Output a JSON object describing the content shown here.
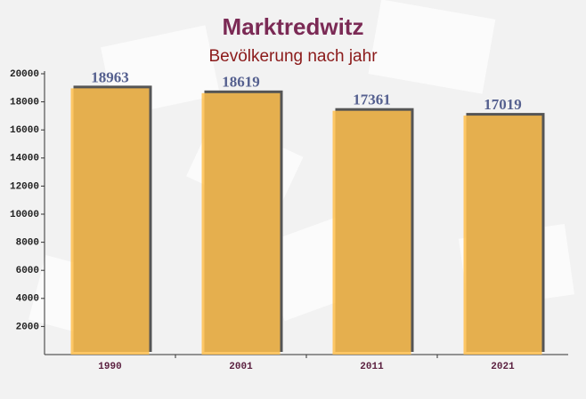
{
  "chart_data": {
    "type": "bar",
    "title": "Marktredwitz",
    "subtitle": "Bevölkerung nach jahr",
    "categories": [
      "1990",
      "2001",
      "2011",
      "2021"
    ],
    "values": [
      18963,
      18619,
      17361,
      17019
    ],
    "color": "#ffc04d",
    "ylim": [
      0,
      20000
    ],
    "yticks": [
      2000,
      4000,
      6000,
      8000,
      10000,
      12000,
      14000,
      16000,
      18000,
      20000
    ]
  }
}
